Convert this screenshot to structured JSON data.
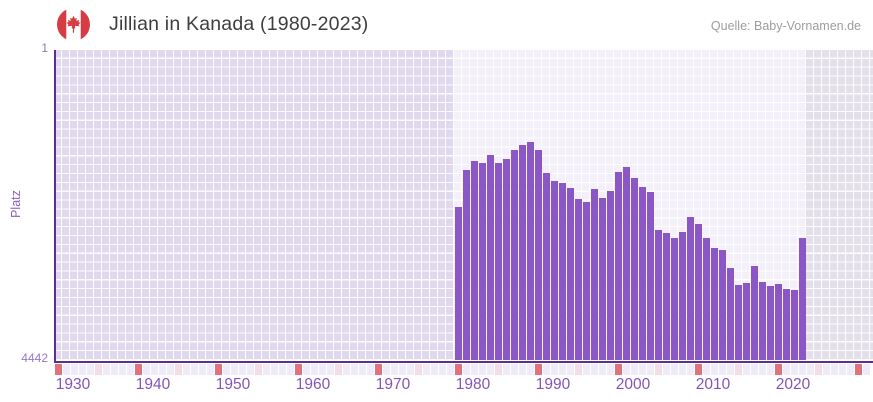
{
  "header": {
    "title": "Jillian in Kanada (1980-2023)",
    "source": "Quelle: Baby-Vornamen.de",
    "flag_icon": "canada-flag-icon"
  },
  "chart_data": {
    "type": "bar",
    "title": "Jillian in Kanada (1980-2023)",
    "subtitle": "",
    "xlabel": "",
    "ylabel": "Platz",
    "y_axis": {
      "top_label": "1",
      "bottom_label": "4442",
      "scale": "log",
      "inverted": true,
      "ylim": [
        1,
        4442
      ]
    },
    "x_axis": {
      "domain": [
        1930,
        2031
      ],
      "tick_labels": [
        "1930",
        "1940",
        "1950",
        "1960",
        "1970",
        "1980",
        "1990",
        "2000",
        "2010",
        "2020"
      ],
      "decade_tick_interval": 10,
      "half_decade_tick_interval": 5
    },
    "grid": true,
    "legend": "none",
    "series": [
      {
        "name": "Platz",
        "x": [
          1980,
          1981,
          1982,
          1983,
          1984,
          1985,
          1986,
          1987,
          1988,
          1989,
          1990,
          1991,
          1992,
          1993,
          1994,
          1995,
          1996,
          1997,
          1998,
          1999,
          2000,
          2001,
          2002,
          2003,
          2004,
          2005,
          2006,
          2007,
          2008,
          2009,
          2010,
          2011,
          2012,
          2013,
          2014,
          2015,
          2016,
          2017,
          2018,
          2019,
          2020,
          2021,
          2022,
          2023
        ],
        "values": [
          69,
          26,
          20,
          21,
          17,
          21,
          19,
          15,
          13,
          12,
          15,
          28,
          35,
          37,
          42,
          57,
          61,
          43,
          55,
          45,
          27,
          24,
          32,
          41,
          46,
          131,
          142,
          160,
          138,
          92,
          110,
          160,
          214,
          223,
          368,
          579,
          544,
          342,
          530,
          591,
          559,
          636,
          653,
          163
        ]
      }
    ],
    "colors": {
      "bar": "#8b57c6",
      "axis_line": "#5b2e91",
      "pre_data_background": "#e0d9ed",
      "data_background": "#f4f0fa",
      "post_data_background": "#e3e0e9",
      "tick_default": "#f0ebf8",
      "tick_decade": "#e1727b",
      "tick_half_decade": "#f3dde5",
      "x_label_text": "#8355b4",
      "y_label_text": "#9477c4",
      "title_text": "#3e3e3e",
      "source_text": "#9d9d9d",
      "flag_red": "#d53c43"
    }
  }
}
